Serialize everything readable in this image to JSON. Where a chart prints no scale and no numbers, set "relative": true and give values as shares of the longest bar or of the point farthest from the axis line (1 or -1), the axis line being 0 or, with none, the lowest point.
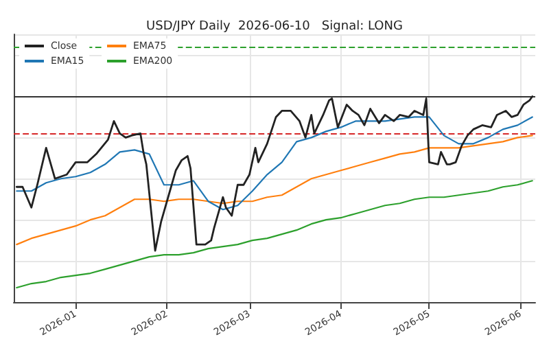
{
  "chart_data": {
    "type": "line",
    "title": "USD/JPY Daily  2026-06-10   Signal: LONG",
    "relative": true,
    "tick_labels": "x",
    "grid": true,
    "legend": "top left",
    "marker": "none",
    "xlim": [
      "2025-12-11",
      "2026-06-06"
    ],
    "xticks": [
      "2026-01",
      "2026-02",
      "2026-03",
      "2026-04",
      "2026-05",
      "2026-06"
    ],
    "series": [
      {
        "name": "Close",
        "color": "#222222",
        "x": [
          "2025-12-12",
          "2025-12-14",
          "2025-12-17",
          "2025-12-19",
          "2025-12-22",
          "2025-12-25",
          "2025-12-29",
          "2026-01-01",
          "2026-01-05",
          "2026-01-08",
          "2026-01-12",
          "2026-01-14",
          "2026-01-16",
          "2026-01-18",
          "2026-01-20",
          "2026-01-23",
          "2026-01-24",
          "2026-01-25",
          "2026-01-28",
          "2026-01-30",
          "2026-02-02",
          "2026-02-04",
          "2026-02-06",
          "2026-02-08",
          "2026-02-09",
          "2026-02-11",
          "2026-02-14",
          "2026-02-16",
          "2026-02-17",
          "2026-02-20",
          "2026-02-21",
          "2026-02-23",
          "2026-02-25",
          "2026-02-27",
          "2026-03-01",
          "2026-03-03",
          "2026-03-04",
          "2026-03-07",
          "2026-03-10",
          "2026-03-12",
          "2026-03-15",
          "2026-03-18",
          "2026-03-20",
          "2026-03-22",
          "2026-03-23",
          "2026-03-26",
          "2026-03-28",
          "2026-03-29",
          "2026-03-31",
          "2026-04-03",
          "2026-04-05",
          "2026-04-07",
          "2026-04-09",
          "2026-04-11",
          "2026-04-14",
          "2026-04-16",
          "2026-04-19",
          "2026-04-21",
          "2026-04-24",
          "2026-04-26",
          "2026-04-29",
          "2026-04-30",
          "2026-05-01",
          "2026-05-04",
          "2026-05-05",
          "2026-05-07",
          "2026-05-08",
          "2026-05-10",
          "2026-05-12",
          "2026-05-14",
          "2026-05-16",
          "2026-05-19",
          "2026-05-22",
          "2026-05-24",
          "2026-05-27",
          "2026-05-29",
          "2026-05-31",
          "2026-06-02",
          "2026-06-04",
          "2026-06-05"
        ],
        "values": [
          0.56,
          0.56,
          0.46,
          0.57,
          0.75,
          0.6,
          0.62,
          0.68,
          0.68,
          0.72,
          0.79,
          0.88,
          0.82,
          0.8,
          0.81,
          0.82,
          0.73,
          0.67,
          0.25,
          0.39,
          0.54,
          0.64,
          0.69,
          0.71,
          0.65,
          0.28,
          0.28,
          0.3,
          0.36,
          0.51,
          0.46,
          0.42,
          0.57,
          0.57,
          0.62,
          0.75,
          0.68,
          0.77,
          0.9,
          0.93,
          0.93,
          0.88,
          0.8,
          0.91,
          0.82,
          0.91,
          0.98,
          0.99,
          0.85,
          0.96,
          0.93,
          0.91,
          0.86,
          0.94,
          0.87,
          0.91,
          0.88,
          0.91,
          0.9,
          0.93,
          0.91,
          0.99,
          0.68,
          0.67,
          0.73,
          0.67,
          0.67,
          0.68,
          0.76,
          0.81,
          0.84,
          0.86,
          0.85,
          0.91,
          0.93,
          0.9,
          0.91,
          0.96,
          0.98,
          1
        ]
      },
      {
        "name": "EMA15",
        "color": "#1f77b4",
        "x": [
          "2025-12-12",
          "2025-12-17",
          "2025-12-22",
          "2025-12-27",
          "2026-01-01",
          "2026-01-06",
          "2026-01-11",
          "2026-01-16",
          "2026-01-21",
          "2026-01-26",
          "2026-01-31",
          "2026-02-05",
          "2026-02-10",
          "2026-02-15",
          "2026-02-20",
          "2026-02-25",
          "2026-03-02",
          "2026-03-07",
          "2026-03-12",
          "2026-03-17",
          "2026-03-22",
          "2026-03-27",
          "2026-04-01",
          "2026-04-06",
          "2026-04-11",
          "2026-04-16",
          "2026-04-21",
          "2026-04-26",
          "2026-05-01",
          "2026-05-06",
          "2026-05-11",
          "2026-05-16",
          "2026-05-21",
          "2026-05-26",
          "2026-05-31",
          "2026-06-05"
        ],
        "values": [
          0.54,
          0.54,
          0.58,
          0.6,
          0.61,
          0.63,
          0.67,
          0.73,
          0.74,
          0.72,
          0.57,
          0.57,
          0.59,
          0.49,
          0.45,
          0.47,
          0.54,
          0.62,
          0.68,
          0.78,
          0.8,
          0.83,
          0.85,
          0.88,
          0.88,
          0.88,
          0.89,
          0.9,
          0.9,
          0.81,
          0.77,
          0.77,
          0.8,
          0.84,
          0.86,
          0.9
        ]
      },
      {
        "name": "EMA75",
        "color": "#ff7f0e",
        "x": [
          "2025-12-12",
          "2025-12-17",
          "2025-12-22",
          "2025-12-27",
          "2026-01-01",
          "2026-01-06",
          "2026-01-11",
          "2026-01-16",
          "2026-01-21",
          "2026-01-26",
          "2026-01-31",
          "2026-02-05",
          "2026-02-10",
          "2026-02-15",
          "2026-02-20",
          "2026-02-25",
          "2026-03-02",
          "2026-03-07",
          "2026-03-12",
          "2026-03-17",
          "2026-03-22",
          "2026-03-27",
          "2026-04-01",
          "2026-04-06",
          "2026-04-11",
          "2026-04-16",
          "2026-04-21",
          "2026-04-26",
          "2026-05-01",
          "2026-05-06",
          "2026-05-11",
          "2026-05-16",
          "2026-05-21",
          "2026-05-26",
          "2026-05-31",
          "2026-06-05"
        ],
        "values": [
          0.28,
          0.31,
          0.33,
          0.35,
          0.37,
          0.4,
          0.42,
          0.46,
          0.5,
          0.5,
          0.49,
          0.5,
          0.5,
          0.49,
          0.48,
          0.49,
          0.49,
          0.51,
          0.52,
          0.56,
          0.6,
          0.62,
          0.64,
          0.66,
          0.68,
          0.7,
          0.72,
          0.73,
          0.75,
          0.75,
          0.75,
          0.76,
          0.77,
          0.78,
          0.8,
          0.81
        ]
      },
      {
        "name": "EMA200",
        "color": "#2ca02c",
        "x": [
          "2025-12-12",
          "2025-12-17",
          "2025-12-22",
          "2025-12-27",
          "2026-01-01",
          "2026-01-06",
          "2026-01-11",
          "2026-01-16",
          "2026-01-21",
          "2026-01-26",
          "2026-01-31",
          "2026-02-05",
          "2026-02-10",
          "2026-02-15",
          "2026-02-20",
          "2026-02-25",
          "2026-03-02",
          "2026-03-07",
          "2026-03-12",
          "2026-03-17",
          "2026-03-22",
          "2026-03-27",
          "2026-04-01",
          "2026-04-06",
          "2026-04-11",
          "2026-04-16",
          "2026-04-21",
          "2026-04-26",
          "2026-05-01",
          "2026-05-06",
          "2026-05-11",
          "2026-05-16",
          "2026-05-21",
          "2026-05-26",
          "2026-05-31",
          "2026-06-05"
        ],
        "values": [
          0.07,
          0.09,
          0.1,
          0.12,
          0.13,
          0.14,
          0.16,
          0.18,
          0.2,
          0.22,
          0.23,
          0.23,
          0.24,
          0.26,
          0.27,
          0.28,
          0.3,
          0.31,
          0.33,
          0.35,
          0.38,
          0.4,
          0.41,
          0.43,
          0.45,
          0.47,
          0.48,
          0.5,
          0.51,
          0.51,
          0.52,
          0.53,
          0.54,
          0.56,
          0.57,
          0.59
        ]
      }
    ],
    "ref_lines": [
      {
        "axis": "y",
        "value": 1.0,
        "color": "#333333",
        "line_style": "solid"
      },
      {
        "axis": "y",
        "value": 0.82,
        "color": "#d62728",
        "line_style": "dashed"
      },
      {
        "axis": "y",
        "value": 1.24,
        "color": "#2ca02c",
        "line_style": "dashed"
      }
    ]
  }
}
